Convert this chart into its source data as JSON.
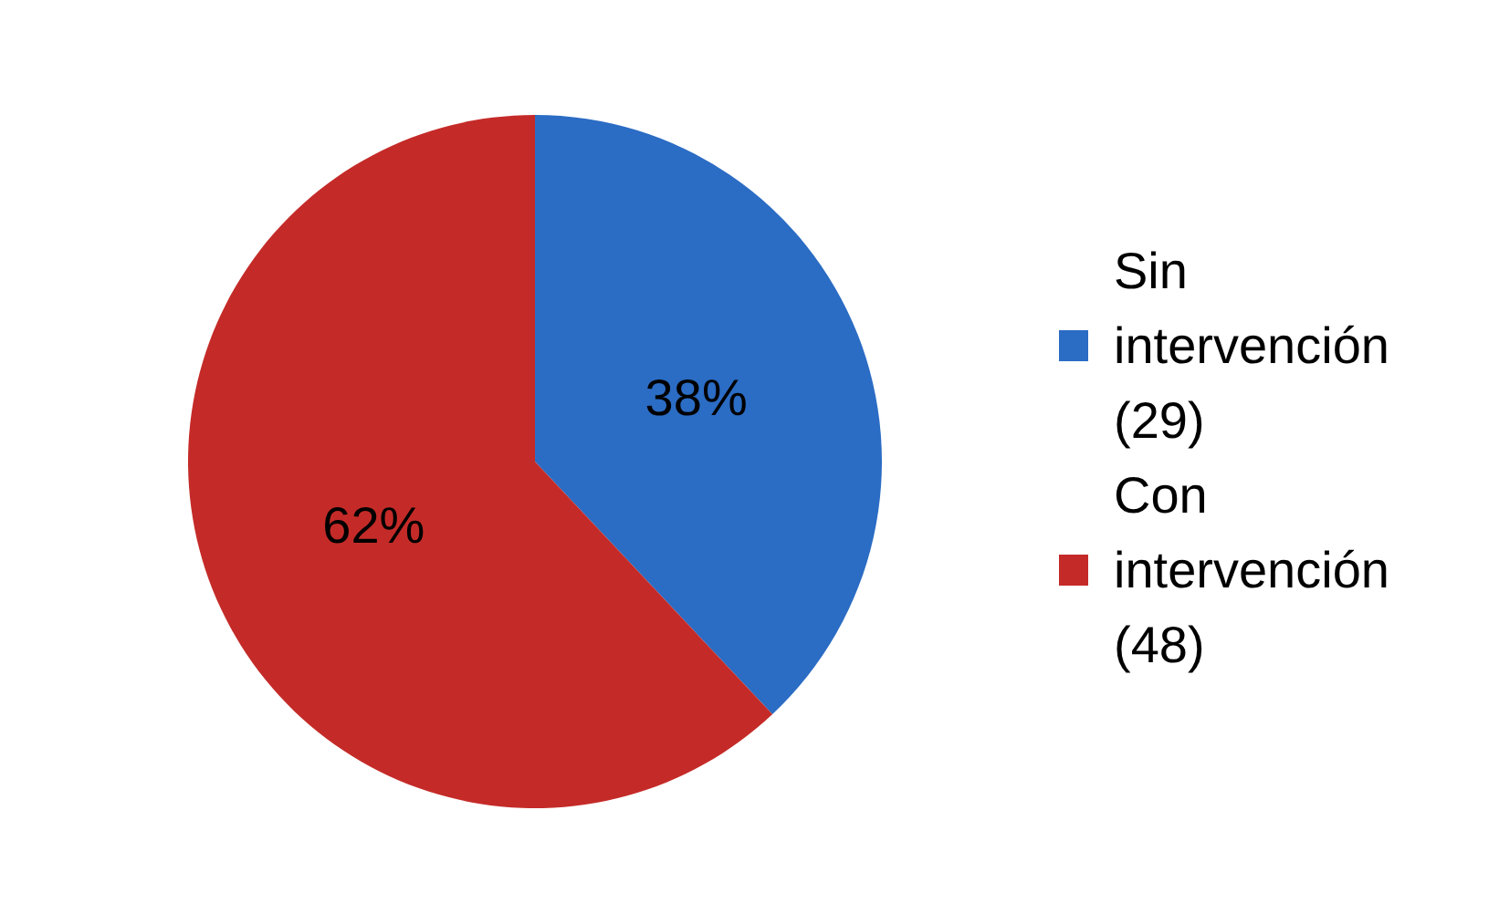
{
  "chart_data": {
    "type": "pie",
    "categories": [
      "Sin intervención (29)",
      "Con intervención (48)"
    ],
    "values": [
      38,
      62
    ],
    "colors": [
      "#2b6cc4",
      "#c42b28"
    ],
    "value_labels": [
      "38%",
      "62%"
    ],
    "legend": "right"
  }
}
